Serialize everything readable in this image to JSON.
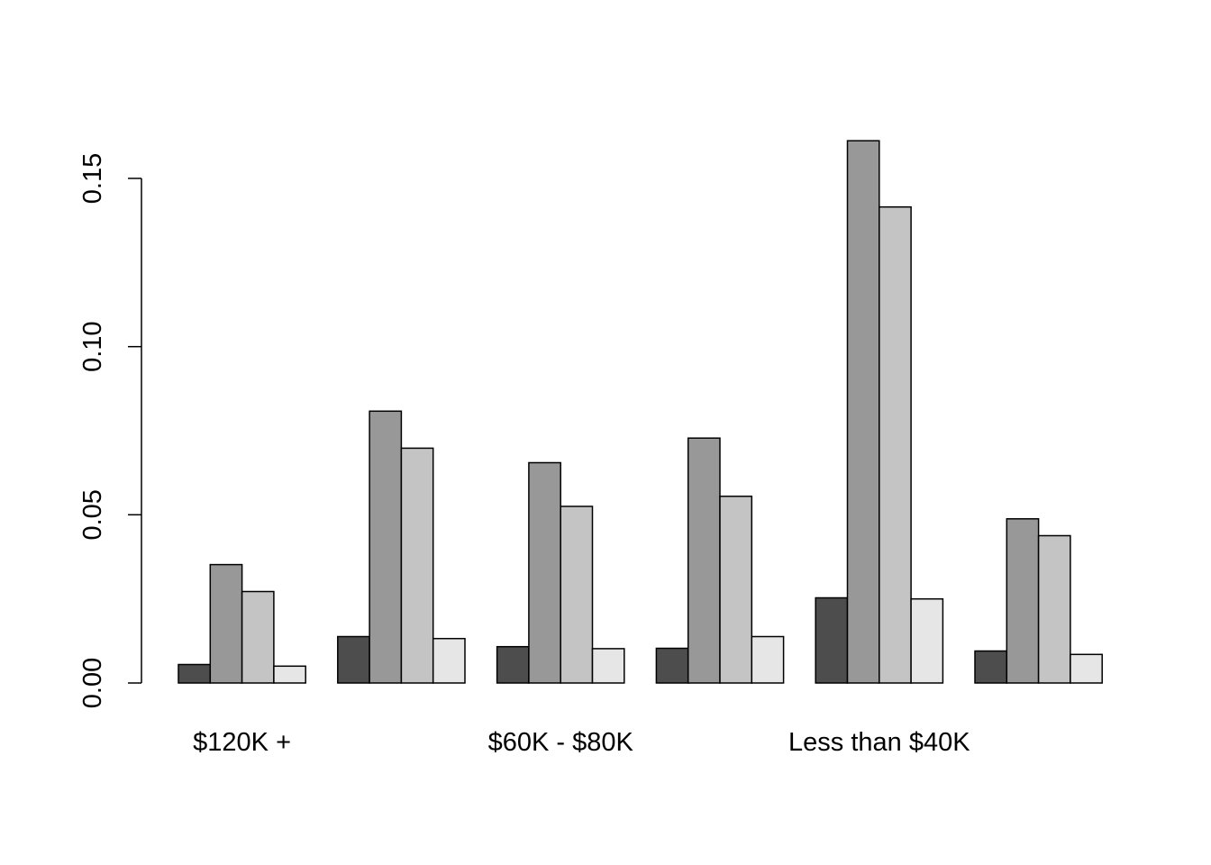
{
  "chart_data": {
    "type": "bar",
    "grouped": true,
    "categories": [
      "$120K +",
      "",
      "$60K - $80K",
      "",
      "Less than $40K",
      ""
    ],
    "series": [
      {
        "color": "#4d4d4d",
        "values": [
          0.0055,
          0.0138,
          0.0108,
          0.0103,
          0.0253,
          0.0095
        ]
      },
      {
        "color": "#989898",
        "values": [
          0.0352,
          0.0808,
          0.0655,
          0.0728,
          0.1612,
          0.0488
        ]
      },
      {
        "color": "#c4c4c4",
        "values": [
          0.0272,
          0.0698,
          0.0525,
          0.0555,
          0.1415,
          0.0438
        ]
      },
      {
        "color": "#e6e6e6",
        "values": [
          0.005,
          0.0132,
          0.0102,
          0.0138,
          0.025,
          0.0085
        ]
      }
    ],
    "yticks": [
      "0.00",
      "0.05",
      "0.10",
      "0.15"
    ],
    "ytick_values": [
      0,
      0.05,
      0.1,
      0.15
    ],
    "ylim": [
      0,
      0.165
    ],
    "title": "",
    "xlabel": "",
    "ylabel": "",
    "grid": false,
    "legend": "none"
  }
}
